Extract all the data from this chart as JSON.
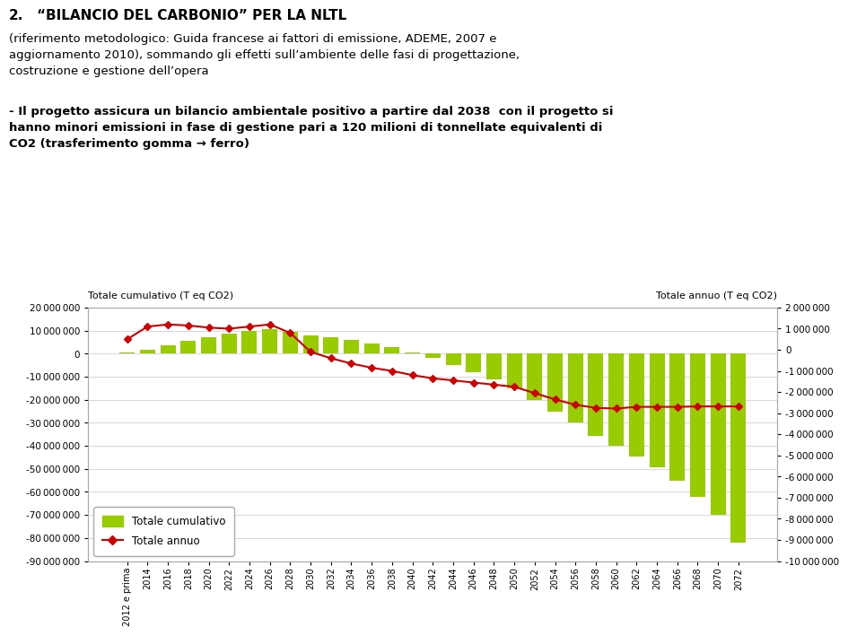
{
  "ylabel_left": "Totale cumulativo (T eq CO2)",
  "ylabel_right": "Totale annuo (T eq CO2)",
  "bar_color": "#99cc00",
  "line_color": "#cc0000",
  "background_color": "#ffffff",
  "ylim_left": [
    -90000000,
    20000000
  ],
  "ylim_right": [
    -10000000,
    2000000
  ],
  "yticks_left": [
    20000000,
    10000000,
    0,
    -10000000,
    -20000000,
    -30000000,
    -40000000,
    -50000000,
    -60000000,
    -70000000,
    -80000000,
    -90000000
  ],
  "yticks_right": [
    2000000,
    1000000,
    0,
    -1000000,
    -2000000,
    -3000000,
    -4000000,
    -5000000,
    -6000000,
    -7000000,
    -8000000,
    -9000000,
    -10000000
  ],
  "categories": [
    "2012 e prima",
    "2014",
    "2016",
    "2018",
    "2020",
    "2022",
    "2024",
    "2026",
    "2028",
    "2030",
    "2032",
    "2034",
    "2036",
    "2038",
    "2040",
    "2042",
    "2044",
    "2046",
    "2048",
    "2050",
    "2052",
    "2054",
    "2056",
    "2058",
    "2060",
    "2062",
    "2064",
    "2066",
    "2068",
    "2070",
    "2072"
  ],
  "bar_values": [
    500000,
    1500000,
    3500000,
    5500000,
    7000000,
    8500000,
    10000000,
    10500000,
    9500000,
    8000000,
    7000000,
    6000000,
    4500000,
    3000000,
    500000,
    -2000000,
    -5000000,
    -8000000,
    -11000000,
    -15000000,
    -20000000,
    -25000000,
    -30000000,
    -35500000,
    -40000000,
    -44500000,
    -49500000,
    -55000000,
    -62000000,
    -70000000,
    -82000000
  ],
  "line_values": [
    500000,
    1100000,
    1200000,
    1150000,
    1050000,
    1000000,
    1100000,
    1200000,
    800000,
    -100000,
    -400000,
    -650000,
    -850000,
    -1000000,
    -1200000,
    -1350000,
    -1450000,
    -1550000,
    -1650000,
    -1750000,
    -2050000,
    -2350000,
    -2600000,
    -2750000,
    -2780000,
    -2700000,
    -2700000,
    -2700000,
    -2680000,
    -2680000,
    -2680000
  ],
  "legend_bar_label": "Totale cumulativo",
  "legend_line_label": "Totale annuo",
  "grid_color": "#c8c8c8"
}
